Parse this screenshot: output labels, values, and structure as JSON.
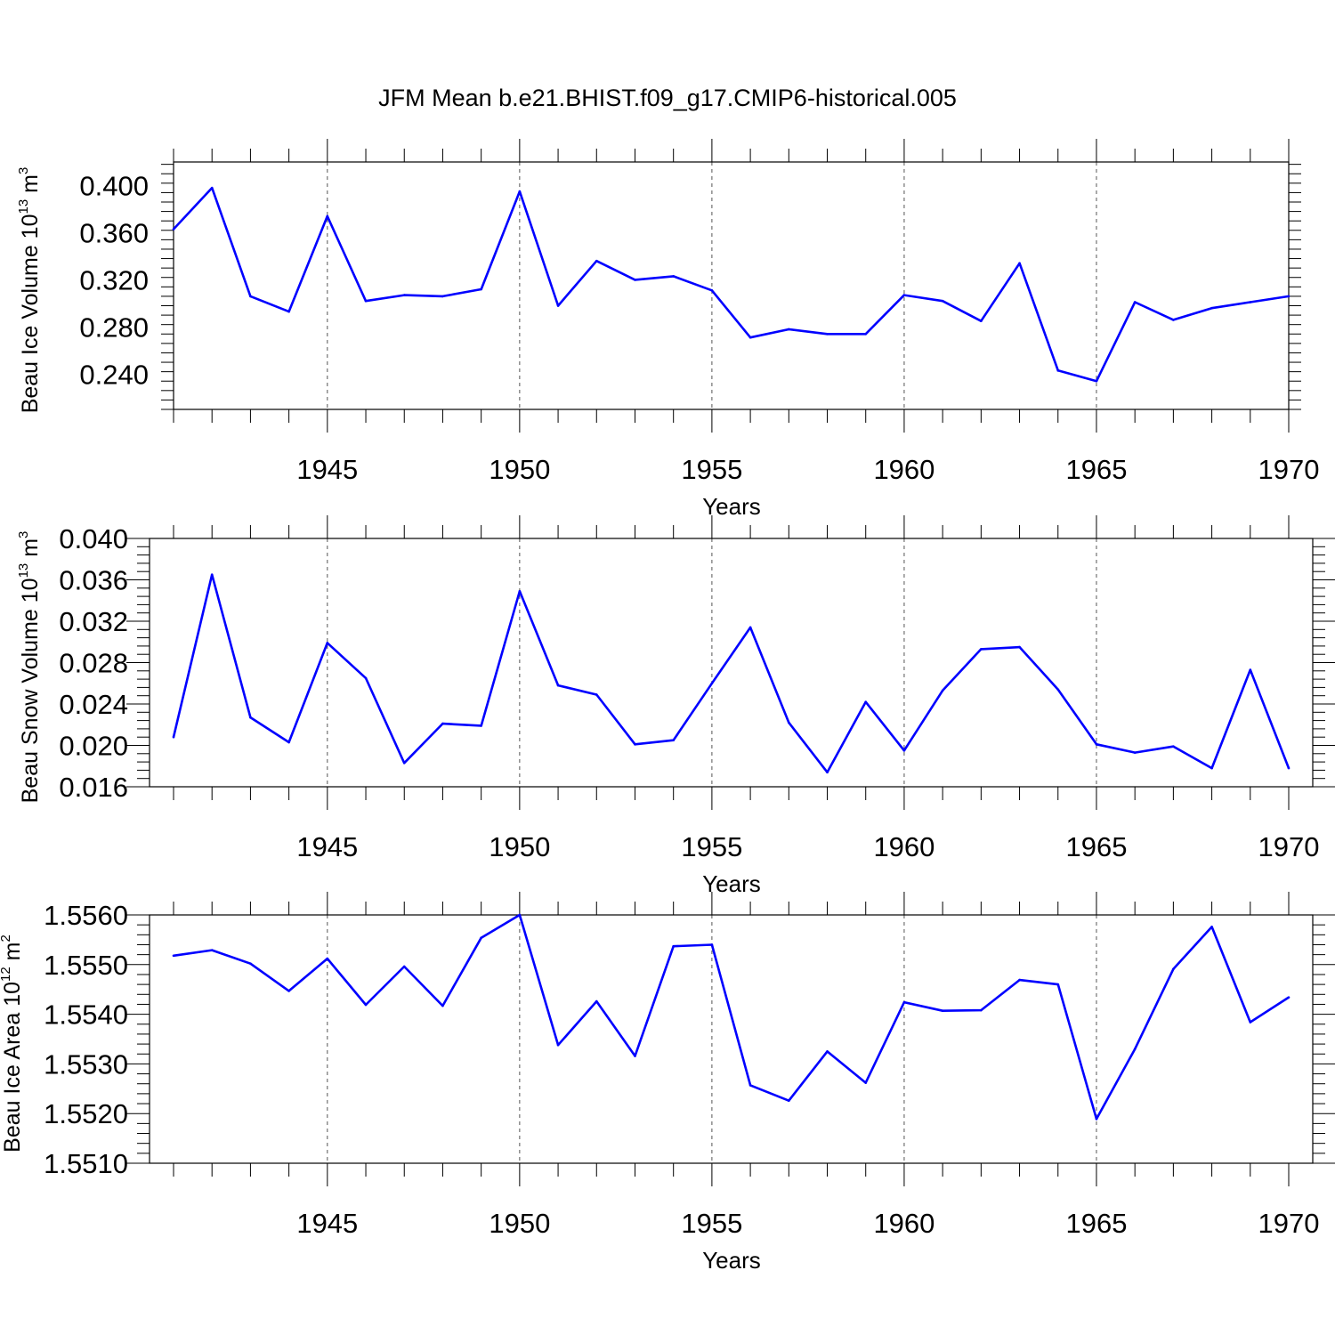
{
  "title": "JFM Mean b.e21.BHIST.f09_g17.CMIP6-historical.005",
  "colors": {
    "line": "#0000ff",
    "axis": "#000000",
    "grid": "#555555"
  },
  "chart_data": [
    {
      "type": "line",
      "xlabel": "Years",
      "ylabel": {
        "main": "Beau Ice Volume 10",
        "exp": "13",
        "unit": " m",
        "unit_exp": "3"
      },
      "xlim": [
        1941,
        1970
      ],
      "ylim": [
        0.21,
        0.42
      ],
      "xticks": [
        1945,
        1950,
        1955,
        1960,
        1965,
        1970
      ],
      "yticks": [
        0.24,
        0.28,
        0.32,
        0.36,
        0.4
      ],
      "ytick_labels": [
        "0.240",
        "0.280",
        "0.320",
        "0.360",
        "0.400"
      ],
      "grid": "vertical dashed at major x ticks",
      "x": [
        1941,
        1942,
        1943,
        1944,
        1945,
        1946,
        1947,
        1948,
        1949,
        1950,
        1951,
        1952,
        1953,
        1954,
        1955,
        1956,
        1957,
        1958,
        1959,
        1960,
        1961,
        1962,
        1963,
        1964,
        1965,
        1966,
        1967,
        1968,
        1969,
        1970
      ],
      "series": [
        {
          "values": [
            0.363,
            0.398,
            0.306,
            0.293,
            0.374,
            0.302,
            0.307,
            0.306,
            0.312,
            0.395,
            0.298,
            0.336,
            0.32,
            0.323,
            0.311,
            0.271,
            0.278,
            0.274,
            0.274,
            0.307,
            0.302,
            0.285,
            0.334,
            0.243,
            0.234,
            0.301,
            0.286,
            0.296,
            0.301,
            0.306
          ]
        }
      ]
    },
    {
      "type": "line",
      "xlabel": "Years",
      "ylabel": {
        "main": "Beau Snow Volume 10",
        "exp": "13",
        "unit": " m",
        "unit_exp": "3"
      },
      "xlim": [
        1941,
        1970
      ],
      "ylim": [
        0.016,
        0.04
      ],
      "xticks": [
        1945,
        1950,
        1955,
        1960,
        1965,
        1970
      ],
      "yticks": [
        0.016,
        0.02,
        0.024,
        0.028,
        0.032,
        0.036,
        0.04
      ],
      "ytick_labels": [
        "0.016",
        "0.020",
        "0.024",
        "0.028",
        "0.032",
        "0.036",
        "0.040"
      ],
      "grid": "vertical dashed at major x ticks",
      "x": [
        1941,
        1942,
        1943,
        1944,
        1945,
        1946,
        1947,
        1948,
        1949,
        1950,
        1951,
        1952,
        1953,
        1954,
        1955,
        1956,
        1957,
        1958,
        1959,
        1960,
        1961,
        1962,
        1963,
        1964,
        1965,
        1966,
        1967,
        1968,
        1969,
        1970
      ],
      "series": [
        {
          "values": [
            0.0208,
            0.0365,
            0.0227,
            0.0203,
            0.0299,
            0.0265,
            0.0183,
            0.0221,
            0.0219,
            0.0349,
            0.0258,
            0.0249,
            0.0201,
            0.0205,
            0.026,
            0.0314,
            0.0222,
            0.0174,
            0.0242,
            0.0195,
            0.0253,
            0.0293,
            0.0295,
            0.0254,
            0.0201,
            0.0193,
            0.0199,
            0.0178,
            0.0273,
            0.0178
          ]
        }
      ]
    },
    {
      "type": "line",
      "xlabel": "Years",
      "ylabel": {
        "main": "Beau Ice Area 10",
        "exp": "12",
        "unit": " m",
        "unit_exp": "2"
      },
      "xlim": [
        1941,
        1970
      ],
      "ylim": [
        1.551,
        1.556
      ],
      "xticks": [
        1945,
        1950,
        1955,
        1960,
        1965,
        1970
      ],
      "yticks": [
        1.551,
        1.552,
        1.553,
        1.554,
        1.555,
        1.556
      ],
      "ytick_labels": [
        "1.5510",
        "1.5520",
        "1.5530",
        "1.5540",
        "1.5550",
        "1.5560"
      ],
      "grid": "vertical dashed at major x ticks",
      "x": [
        1941,
        1942,
        1943,
        1944,
        1945,
        1946,
        1947,
        1948,
        1949,
        1950,
        1951,
        1952,
        1953,
        1954,
        1955,
        1956,
        1957,
        1958,
        1959,
        1960,
        1961,
        1962,
        1963,
        1964,
        1965,
        1966,
        1967,
        1968,
        1969,
        1970
      ],
      "series": [
        {
          "values": [
            1.55518,
            1.55529,
            1.55502,
            1.55447,
            1.55512,
            1.55419,
            1.55496,
            1.55417,
            1.55554,
            1.556,
            1.55338,
            1.55426,
            1.55316,
            1.55537,
            1.5554,
            1.55257,
            1.55226,
            1.55325,
            1.55262,
            1.55424,
            1.55407,
            1.55408,
            1.55469,
            1.5546,
            1.55189,
            1.5533,
            1.55491,
            1.55576,
            1.55384,
            1.55434
          ]
        }
      ]
    }
  ]
}
